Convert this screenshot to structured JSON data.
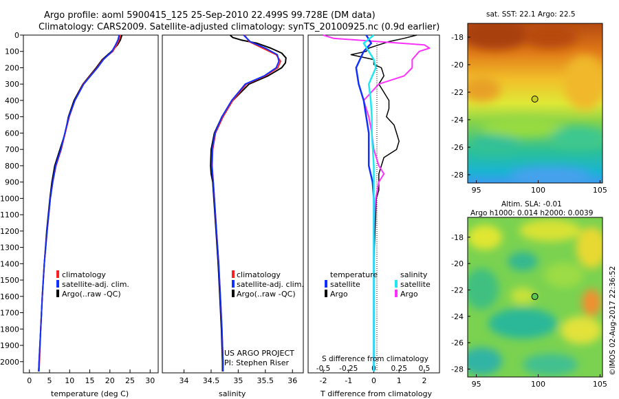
{
  "header": {
    "line1": "Argo profile: aoml 5900415_125 25-Sep-2010 22.499S 99.728E (DM data)",
    "line2": "Climatology: CARS2009. Satellite-adjusted climatology: synTS_20100925.nc (0.9d earlier)"
  },
  "colors": {
    "climatology": "#ff2020",
    "satellite": "#1030ff",
    "argo": "#000000",
    "sal_satellite": "#20e8f0",
    "sal_argo": "#ff30ff"
  },
  "chart_data": [
    {
      "type": "line",
      "title": "",
      "xlabel": "temperature (deg C)",
      "ylabel": "",
      "xlim": [
        -1.5,
        32
      ],
      "ylim": [
        0,
        2060
      ],
      "xticks": [
        "0",
        "5",
        "10",
        "15",
        "20",
        "25",
        "30"
      ],
      "yticks": [
        "0",
        "100",
        "200",
        "300",
        "400",
        "500",
        "600",
        "700",
        "800",
        "900",
        "1000",
        "1100",
        "1200",
        "1300",
        "1400",
        "1500",
        "1600",
        "1700",
        "1800",
        "1900",
        "2000"
      ],
      "legend": [
        "climatology",
        "satellite-adj. clim.",
        "Argo(..raw -QC)"
      ],
      "series": [
        {
          "name": "climatology",
          "depth": [
            0,
            30,
            60,
            100,
            150,
            200,
            300,
            400,
            500,
            600,
            700,
            800,
            900,
            1000,
            1200,
            1400,
            1600,
            1800,
            2000,
            2060
          ],
          "values": [
            22.6,
            22.3,
            21.7,
            20.7,
            18.3,
            16.8,
            13.4,
            11.3,
            9.9,
            8.9,
            7.9,
            6.6,
            5.8,
            5.2,
            4.4,
            3.7,
            3.2,
            2.8,
            2.5,
            2.4
          ]
        },
        {
          "name": "satellite-adj. clim.",
          "depth": [
            0,
            30,
            60,
            100,
            150,
            200,
            300,
            400,
            500,
            600,
            700,
            800,
            900,
            1000,
            1200,
            1400,
            1600,
            1800,
            2000,
            2060
          ],
          "values": [
            22.3,
            22.0,
            21.4,
            20.5,
            18.4,
            16.9,
            13.5,
            11.3,
            9.8,
            8.8,
            7.8,
            6.5,
            5.8,
            5.2,
            4.4,
            3.7,
            3.2,
            2.8,
            2.4,
            2.3
          ]
        },
        {
          "name": "Argo(..raw -QC)",
          "depth": [
            0,
            30,
            60,
            100,
            150,
            200,
            300,
            400,
            500,
            600,
            700,
            800,
            900,
            1000,
            1200,
            1400,
            1600,
            1800,
            2000,
            2060
          ],
          "values": [
            23.0,
            22.6,
            21.9,
            20.4,
            18.1,
            16.6,
            13.3,
            11.1,
            9.7,
            8.9,
            7.6,
            6.3,
            5.6,
            5.1,
            4.3,
            3.7,
            3.2,
            2.8,
            2.4,
            2.3
          ]
        }
      ]
    },
    {
      "type": "line",
      "title": "",
      "xlabel": "salinity",
      "ylabel": "",
      "xlim": [
        33.6,
        36.2
      ],
      "ylim": [
        0,
        2060
      ],
      "xticks": [
        "34",
        "34.5",
        "35",
        "35.5",
        "36"
      ],
      "legend": [
        "climatology",
        "satellite-adj. clim.",
        "Argo(..raw -QC)"
      ],
      "annotations": [
        "US ARGO PROJECT",
        "PI: Stephen Riser"
      ],
      "series": [
        {
          "name": "climatology",
          "depth": [
            0,
            40,
            80,
            120,
            160,
            200,
            250,
            300,
            400,
            500,
            600,
            700,
            800,
            900,
            1000,
            1200,
            1400,
            1600,
            1800,
            2000,
            2060
          ],
          "values": [
            35.12,
            35.2,
            35.45,
            35.7,
            35.78,
            35.73,
            35.5,
            35.15,
            34.9,
            34.72,
            34.58,
            34.53,
            34.52,
            34.54,
            34.56,
            34.6,
            34.64,
            34.67,
            34.7,
            34.72,
            34.72
          ]
        },
        {
          "name": "satellite-adj. clim.",
          "depth": [
            0,
            40,
            80,
            120,
            160,
            200,
            250,
            300,
            400,
            500,
            600,
            700,
            800,
            900,
            1000,
            1200,
            1400,
            1600,
            1800,
            2000,
            2060
          ],
          "values": [
            35.1,
            35.22,
            35.5,
            35.72,
            35.75,
            35.7,
            35.48,
            35.13,
            34.88,
            34.7,
            34.57,
            34.52,
            34.51,
            34.54,
            34.56,
            34.6,
            34.64,
            34.67,
            34.7,
            34.72,
            34.72
          ]
        },
        {
          "name": "Argo(..raw -QC)",
          "depth": [
            0,
            15,
            30,
            50,
            80,
            110,
            140,
            170,
            200,
            250,
            300,
            400,
            500,
            600,
            700,
            800,
            850,
            900,
            1000,
            1200,
            1400,
            1600,
            1800,
            2000,
            2060
          ],
          "values": [
            34.85,
            34.9,
            35.05,
            35.35,
            35.6,
            35.8,
            35.88,
            35.87,
            35.8,
            35.55,
            35.2,
            34.9,
            34.7,
            34.56,
            34.5,
            34.49,
            34.5,
            34.53,
            34.55,
            34.59,
            34.63,
            34.66,
            34.69,
            34.71,
            34.71
          ]
        }
      ]
    },
    {
      "type": "line",
      "title": "",
      "xlabel": "T difference from climatology",
      "xlabel2": "S difference from climatology",
      "xlim": [
        -2.6,
        2.6
      ],
      "ylim": [
        0,
        2060
      ],
      "xticks": [
        "-2",
        "-1",
        "0",
        "1",
        "2"
      ],
      "xticks2": [
        "-0.5",
        "-0.25",
        "0",
        "0.25",
        "0.5"
      ],
      "legend_titles": [
        "temperature",
        "salinity"
      ],
      "legend": [
        "satellite",
        "Argo",
        "satellite",
        "Argo"
      ],
      "series": [
        {
          "name": "temperature satellite",
          "depth": [
            0,
            50,
            100,
            200,
            300,
            400,
            500,
            600,
            700,
            800,
            900,
            1000,
            1400,
            2060
          ],
          "values": [
            -0.3,
            -0.1,
            -0.4,
            -0.7,
            -0.6,
            -0.4,
            -0.3,
            -0.2,
            -0.2,
            -0.2,
            -0.05,
            0.0,
            0.0,
            0.0
          ]
        },
        {
          "name": "temperature Argo",
          "depth": [
            0,
            20,
            40,
            60,
            80,
            100,
            120,
            150,
            180,
            200,
            250,
            300,
            350,
            400,
            450,
            500,
            550,
            600,
            650,
            700,
            750,
            800,
            850,
            900,
            950,
            1000,
            1200,
            1400,
            1600,
            1800,
            2000,
            2060
          ],
          "values": [
            1.7,
            1.2,
            0.6,
            0.2,
            -0.2,
            -0.3,
            -0.9,
            0.0,
            0.0,
            0.3,
            0.4,
            0.2,
            0.4,
            0.6,
            0.6,
            0.5,
            0.8,
            0.9,
            1.0,
            0.9,
            0.4,
            0.3,
            0.2,
            0.2,
            0.2,
            0.1,
            0.05,
            0.0,
            0.0,
            0.0,
            0.0,
            0.0
          ]
        },
        {
          "name": "salinity satellite",
          "depth": [
            0,
            50,
            100,
            150,
            200,
            300,
            400,
            500,
            600,
            700,
            800,
            900,
            1000,
            1400,
            2060
          ],
          "values": [
            0.0,
            -0.1,
            -0.05,
            0.0,
            0.02,
            -0.05,
            -0.03,
            -0.02,
            -0.02,
            -0.01,
            0.0,
            0.0,
            0.0,
            0.0,
            0.0
          ]
        },
        {
          "name": "salinity Argo",
          "depth": [
            0,
            20,
            40,
            60,
            80,
            100,
            150,
            200,
            250,
            300,
            400,
            500,
            600,
            700,
            800,
            850,
            900,
            1000,
            1200,
            1400,
            1600,
            1800,
            2000,
            2060
          ],
          "values": [
            -0.5,
            -0.4,
            0.05,
            0.5,
            0.55,
            0.45,
            0.38,
            0.38,
            0.3,
            0.05,
            -0.1,
            -0.05,
            -0.02,
            0.0,
            0.05,
            0.1,
            0.05,
            0.02,
            0.0,
            0.0,
            0.0,
            0.0,
            0.0,
            0.0
          ]
        }
      ]
    },
    {
      "type": "heatmap",
      "title": "sat. SST: 22.1  Argo: 22.5",
      "xlim": [
        94.3,
        105.2
      ],
      "ylim": [
        -28.6,
        -17
      ],
      "xticks": [
        "95",
        "100",
        "105"
      ],
      "yticks": [
        "-18",
        "-20",
        "-22",
        "-24",
        "-26",
        "-28"
      ],
      "marker": {
        "lon": 99.73,
        "lat": -22.5
      }
    },
    {
      "type": "heatmap",
      "title": "Altim. SLA: -0.01",
      "subtitle": "Argo h1000: 0.014 h2000: 0.0039",
      "xlim": [
        94.3,
        105.2
      ],
      "ylim": [
        -28.6,
        -16.5
      ],
      "xticks": [
        "95",
        "100",
        "105"
      ],
      "yticks": [
        "-18",
        "-20",
        "-22",
        "-24",
        "-26",
        "-28"
      ],
      "marker": {
        "lon": 99.73,
        "lat": -22.5
      }
    }
  ],
  "watermark": "©IMOS 02-Aug-2017 22:36:52"
}
